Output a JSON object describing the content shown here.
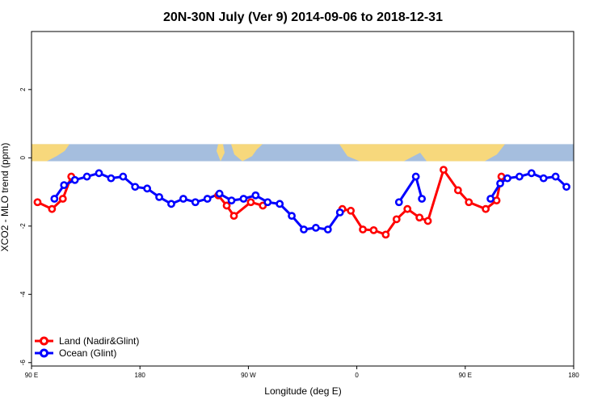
{
  "chart_data": {
    "type": "line",
    "title": "20N-30N July (Ver 9)   2014-09-06 to 2018-12-31",
    "xlabel": "Longitude (deg E)",
    "ylabel": "XCO2 - MLO trend (ppm)",
    "xlim": [
      90,
      540
    ],
    "ylim": [
      -6.1,
      3.7
    ],
    "x_ticks": [
      {
        "value": 90,
        "label": "90 E"
      },
      {
        "value": 180,
        "label": "180"
      },
      {
        "value": 270,
        "label": "90 W"
      },
      {
        "value": 360,
        "label": "0"
      },
      {
        "value": 450,
        "label": "90 E"
      },
      {
        "value": 540,
        "label": "180"
      }
    ],
    "y_ticks": [
      {
        "value": 2,
        "label": "2"
      },
      {
        "value": 0,
        "label": "0"
      },
      {
        "value": -2,
        "label": "-2"
      },
      {
        "value": -4,
        "label": "-4"
      },
      {
        "value": -6,
        "label": "-6"
      }
    ],
    "map_band": {
      "y_top": 0.4,
      "y_bottom": -0.1,
      "ocean_color": "#a5bede",
      "land_color": "#f7d87c"
    },
    "legend_position": "bottom-left",
    "series": [
      {
        "name": "Land (Nadir&Glint)",
        "color": "#ff0000",
        "segments": [
          [
            [
              95,
              -1.3
            ],
            [
              107,
              -1.5
            ],
            [
              116,
              -1.2
            ],
            [
              123,
              -0.55
            ]
          ],
          [
            [
              245,
              -1.1
            ],
            [
              252,
              -1.4
            ],
            [
              258,
              -1.7
            ],
            [
              272,
              -1.3
            ],
            [
              282,
              -1.4
            ]
          ],
          [
            [
              348,
              -1.5
            ],
            [
              355,
              -1.55
            ],
            [
              365,
              -2.1
            ],
            [
              374,
              -2.12
            ],
            [
              384,
              -2.25
            ],
            [
              393,
              -1.8
            ],
            [
              402,
              -1.5
            ],
            [
              412,
              -1.75
            ],
            [
              419,
              -1.85
            ],
            [
              432,
              -0.35
            ],
            [
              444,
              -0.95
            ],
            [
              453,
              -1.3
            ],
            [
              467,
              -1.5
            ],
            [
              476,
              -1.25
            ],
            [
              480,
              -0.55
            ]
          ]
        ]
      },
      {
        "name": "Ocean (Glint)",
        "color": "#0000ff",
        "segments": [
          [
            [
              109,
              -1.2
            ],
            [
              117,
              -0.8
            ],
            [
              126,
              -0.65
            ],
            [
              136,
              -0.55
            ],
            [
              146,
              -0.45
            ],
            [
              156,
              -0.6
            ],
            [
              166,
              -0.55
            ],
            [
              176,
              -0.85
            ],
            [
              186,
              -0.9
            ],
            [
              196,
              -1.15
            ],
            [
              206,
              -1.35
            ],
            [
              216,
              -1.2
            ],
            [
              226,
              -1.3
            ],
            [
              236,
              -1.2
            ],
            [
              246,
              -1.05
            ],
            [
              256,
              -1.25
            ],
            [
              266,
              -1.2
            ],
            [
              276,
              -1.1
            ],
            [
              286,
              -1.3
            ],
            [
              296,
              -1.35
            ],
            [
              306,
              -1.7
            ],
            [
              316,
              -2.1
            ],
            [
              326,
              -2.05
            ],
            [
              336,
              -2.1
            ],
            [
              346,
              -1.6
            ]
          ],
          [
            [
              395,
              -1.3
            ],
            [
              409,
              -0.55
            ],
            [
              414,
              -1.2
            ]
          ],
          [
            [
              471,
              -1.2
            ],
            [
              479,
              -0.75
            ],
            [
              485,
              -0.6
            ],
            [
              495,
              -0.55
            ],
            [
              505,
              -0.45
            ],
            [
              515,
              -0.6
            ],
            [
              525,
              -0.55
            ],
            [
              534,
              -0.85
            ]
          ]
        ]
      }
    ]
  }
}
